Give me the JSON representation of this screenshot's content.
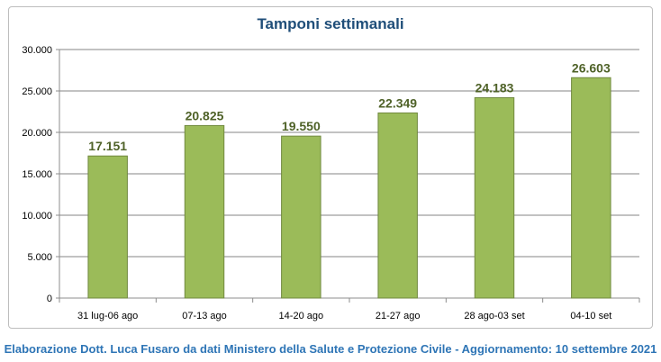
{
  "chart_data": {
    "type": "bar",
    "title": "Tamponi settimanali",
    "categories": [
      "31 lug-06 ago",
      "07-13 ago",
      "14-20 ago",
      "21-27 ago",
      "28 ago-03 set",
      "04-10 set"
    ],
    "values": [
      17151,
      20825,
      19550,
      22349,
      24183,
      26603
    ],
    "data_labels": [
      "17.151",
      "20.825",
      "19.550",
      "22.349",
      "24.183",
      "26.603"
    ],
    "y_ticks": [
      "0",
      "5.000",
      "10.000",
      "15.000",
      "20.000",
      "25.000",
      "30.000"
    ],
    "ylim": [
      0,
      30000
    ],
    "ytick_step": 5000,
    "grid": true,
    "bar_color": "#9bbb59",
    "bar_border_color": "#71893f",
    "label_color": "#4f6228"
  },
  "credit": "Elaborazione Dott. Luca Fusaro da dati Ministero della Salute e Protezione Civile - Aggiornamento: 10 settembre 2021"
}
